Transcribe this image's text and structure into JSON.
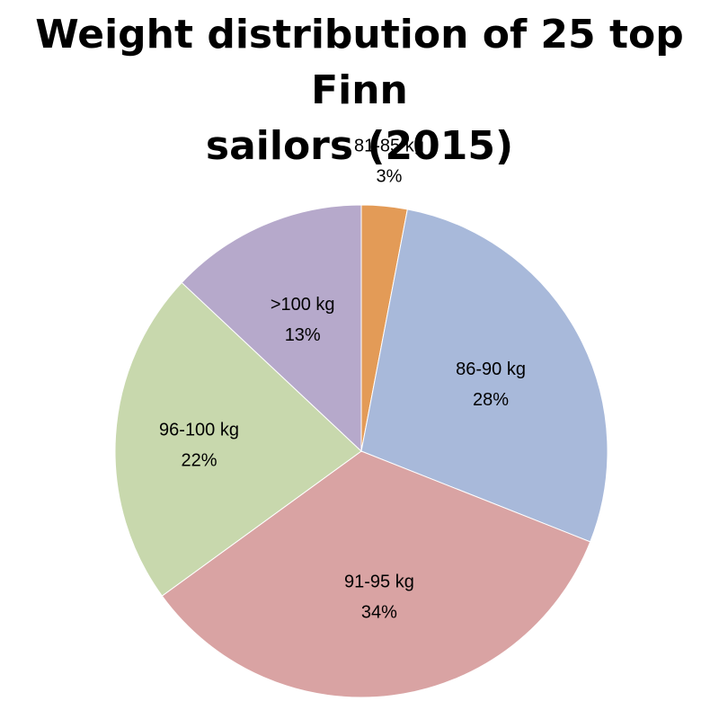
{
  "chart_data": {
    "type": "pie",
    "title_lines": [
      "Weight distribution of 25 top Finn",
      "sailors (2015)"
    ],
    "title": "Weight distribution of 25 top Finn sailors (2015)",
    "start_angle_deg": 0,
    "direction": "clockwise",
    "legend": "none",
    "slices": [
      {
        "label": "81-85 kg",
        "value": 3,
        "value_label": "3%",
        "color": "#E39B57"
      },
      {
        "label": "86-90 kg",
        "value": 28,
        "value_label": "28%",
        "color": "#A8B9DA"
      },
      {
        "label": "91-95 kg",
        "value": 34,
        "value_label": "34%",
        "color": "#D9A3A3"
      },
      {
        "label": "96-100 kg",
        "value": 22,
        "value_label": "22%",
        "color": "#C8D8AD"
      },
      {
        "label": ">100 kg",
        "value": 13,
        "value_label": "13%",
        "color": "#B6A9CB"
      }
    ]
  }
}
